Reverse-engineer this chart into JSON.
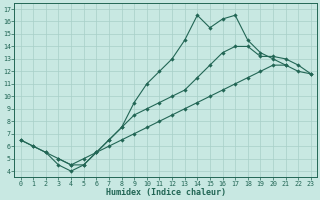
{
  "xlabel": "Humidex (Indice chaleur)",
  "bg_color": "#c8e8e2",
  "line_color": "#226655",
  "grid_color": "#a8cfc8",
  "xlim": [
    -0.5,
    23.5
  ],
  "ylim": [
    3.5,
    17.5
  ],
  "xticks": [
    0,
    1,
    2,
    3,
    4,
    5,
    6,
    7,
    8,
    9,
    10,
    11,
    12,
    13,
    14,
    15,
    16,
    17,
    18,
    19,
    20,
    21,
    22,
    23
  ],
  "yticks": [
    4,
    5,
    6,
    7,
    8,
    9,
    10,
    11,
    12,
    13,
    14,
    15,
    16,
    17
  ],
  "line1_x": [
    0,
    1,
    2,
    3,
    4,
    5,
    6,
    7,
    8,
    9,
    10,
    11,
    12,
    13,
    14,
    15,
    16,
    17,
    18,
    19,
    20,
    21,
    22,
    23
  ],
  "line1_y": [
    6.5,
    6.0,
    5.5,
    5.0,
    4.5,
    5.0,
    5.5,
    6.0,
    6.5,
    7.0,
    7.5,
    8.0,
    8.5,
    9.0,
    9.5,
    10.0,
    10.5,
    11.0,
    11.5,
    12.0,
    12.5,
    12.5,
    12.0,
    11.8
  ],
  "line2_x": [
    0,
    1,
    2,
    3,
    4,
    5,
    6,
    7,
    8,
    9,
    10,
    11,
    12,
    13,
    14,
    15,
    16,
    17,
    18,
    19,
    20,
    21
  ],
  "line2_y": [
    6.5,
    6.0,
    5.5,
    4.5,
    4.0,
    4.5,
    5.5,
    6.5,
    7.5,
    9.5,
    11.0,
    12.0,
    13.0,
    14.5,
    16.5,
    15.5,
    16.2,
    16.5,
    14.5,
    13.5,
    13.0,
    12.5
  ],
  "line3_x": [
    3,
    4,
    5,
    6,
    7,
    8,
    9,
    10,
    11,
    12,
    13,
    14,
    15,
    16,
    17,
    18,
    19,
    20,
    21,
    22,
    23
  ],
  "line3_y": [
    5.0,
    4.5,
    4.5,
    5.5,
    6.5,
    7.5,
    8.5,
    9.0,
    9.5,
    10.0,
    10.5,
    11.5,
    12.5,
    13.5,
    14.0,
    14.0,
    13.2,
    13.2,
    13.0,
    12.5,
    11.8
  ]
}
